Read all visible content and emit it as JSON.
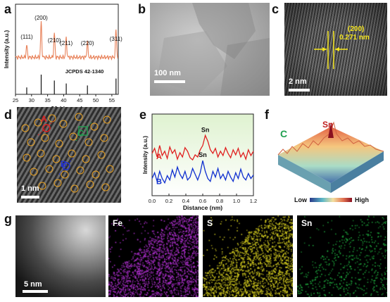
{
  "panels": {
    "a": {
      "letter": "a",
      "chart_data": {
        "type": "line",
        "xlabel": "2θ (degree)",
        "ylabel": "Intensity (a.u.)",
        "xlim": [
          25,
          57
        ],
        "x_ticks": [
          "25",
          "30",
          "35",
          "40",
          "45",
          "50",
          "55"
        ],
        "peaks": [
          {
            "label": "(111)",
            "x": 28.5
          },
          {
            "label": "(200)",
            "x": 33.0
          },
          {
            "label": "(210)",
            "x": 37.1
          },
          {
            "label": "(211)",
            "x": 40.8
          },
          {
            "label": "(220)",
            "x": 47.4
          },
          {
            "label": "(311)",
            "x": 56.3
          }
        ],
        "reference": {
          "name": "JCPDS 42-1340",
          "lines": [
            {
              "x": 28.5,
              "h": 0.35
            },
            {
              "x": 33.0,
              "h": 1.0
            },
            {
              "x": 37.1,
              "h": 0.7
            },
            {
              "x": 40.8,
              "h": 0.55
            },
            {
              "x": 47.4,
              "h": 0.45
            },
            {
              "x": 56.3,
              "h": 0.8
            }
          ]
        },
        "color": "#e8825a"
      }
    },
    "b": {
      "letter": "b",
      "scale_bar": "100 nm"
    },
    "c": {
      "letter": "c",
      "plane": "(200)",
      "spacing": "0.271 nm",
      "scale_bar": "2 nm",
      "marker_color": "#f5e61e"
    },
    "d": {
      "letter": "d",
      "scale_bar": "1 nm",
      "markers": [
        "A",
        "B",
        "C"
      ],
      "marker_colors": {
        "A": "#e02020",
        "B": "#2030d0",
        "C": "#20a050",
        "circles": "#e8a020"
      }
    },
    "e": {
      "letter": "e",
      "chart_data": {
        "type": "line",
        "xlabel": "Distance (nm)",
        "ylabel": "Intensity (a.u.)",
        "xlim": [
          0.0,
          1.2
        ],
        "x_ticks": [
          "0.0",
          "0.2",
          "0.4",
          "0.6",
          "0.8",
          "1.0",
          "1.2"
        ],
        "series": [
          {
            "name": "A",
            "color": "#e02020",
            "peak_label": "Sn",
            "x": [
              0,
              0.03,
              0.06,
              0.09,
              0.12,
              0.15,
              0.18,
              0.21,
              0.24,
              0.27,
              0.3,
              0.33,
              0.36,
              0.39,
              0.42,
              0.45,
              0.48,
              0.51,
              0.54,
              0.57,
              0.6,
              0.63,
              0.66,
              0.69,
              0.72,
              0.75,
              0.78,
              0.81,
              0.84,
              0.87,
              0.9,
              0.93,
              0.96,
              0.99,
              1.02,
              1.05,
              1.08,
              1.11,
              1.14,
              1.17,
              1.2
            ],
            "y": [
              0.55,
              0.62,
              0.5,
              0.66,
              0.52,
              0.58,
              0.48,
              0.64,
              0.55,
              0.6,
              0.47,
              0.56,
              0.5,
              0.63,
              0.58,
              0.49,
              0.46,
              0.53,
              0.5,
              0.6,
              0.66,
              0.8,
              0.72,
              0.6,
              0.55,
              0.62,
              0.5,
              0.58,
              0.52,
              0.63,
              0.55,
              0.49,
              0.6,
              0.53,
              0.62,
              0.5,
              0.56,
              0.47,
              0.6,
              0.52,
              0.58
            ]
          },
          {
            "name": "B",
            "color": "#1030d0",
            "peak_label": "Sn",
            "x": [
              0,
              0.03,
              0.06,
              0.09,
              0.12,
              0.15,
              0.18,
              0.21,
              0.24,
              0.27,
              0.3,
              0.33,
              0.36,
              0.39,
              0.42,
              0.45,
              0.48,
              0.51,
              0.54,
              0.57,
              0.6,
              0.63,
              0.66,
              0.69,
              0.72,
              0.75,
              0.78,
              0.81,
              0.84,
              0.87,
              0.9,
              0.93,
              0.96,
              0.99,
              1.02,
              1.05,
              1.08,
              1.11,
              1.14,
              1.17,
              1.2
            ],
            "y": [
              0.2,
              0.28,
              0.16,
              0.3,
              0.2,
              0.14,
              0.24,
              0.18,
              0.32,
              0.22,
              0.36,
              0.26,
              0.2,
              0.3,
              0.18,
              0.22,
              0.34,
              0.26,
              0.18,
              0.28,
              0.45,
              0.3,
              0.2,
              0.16,
              0.3,
              0.22,
              0.34,
              0.2,
              0.26,
              0.18,
              0.3,
              0.22,
              0.16,
              0.28,
              0.2,
              0.33,
              0.22,
              0.18,
              0.27,
              0.2,
              0.25
            ]
          }
        ]
      }
    },
    "f": {
      "letter": "f",
      "label_c": "C",
      "label_sn": "Sn",
      "colorbar_low": "Low",
      "colorbar_high": "High"
    },
    "g": {
      "letter": "g",
      "scale_bar": "5 nm",
      "maps": [
        {
          "label": "Fe",
          "color": "#b030d0"
        },
        {
          "label": "S",
          "color": "#d8d020"
        },
        {
          "label": "Sn",
          "color": "#20b040"
        }
      ]
    }
  }
}
